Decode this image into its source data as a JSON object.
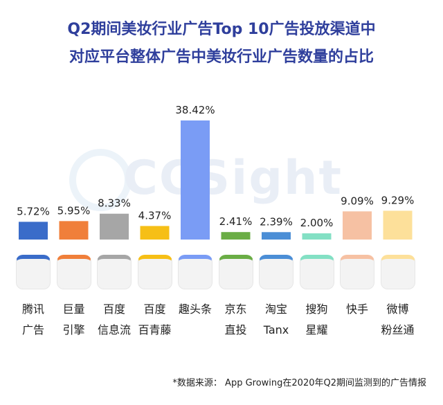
{
  "title_line1": "Q2期间美妆行业广告Top 10广告投放渠道中",
  "title_line2": "对应平台整体广告中美妆行业广告数量的占比",
  "watermark": "CCSight",
  "source": "*数据来源：  App Growing在2020年Q2期间监测到的广告情报",
  "platforms": [
    {
      "line1": "腾讯",
      "line2": "广告",
      "icon": "tencent-ads-icon"
    },
    {
      "line1": "巨量",
      "line2": "引擎",
      "icon": "ocean-engine-icon"
    },
    {
      "line1": "百度",
      "line2": "信息流",
      "icon": "baidu-feed-icon"
    },
    {
      "line1": "百度",
      "line2": "百青藤",
      "icon": "baiqingteng-icon"
    },
    {
      "line1": "趣头条",
      "line2": "",
      "icon": "qutoutiao-icon"
    },
    {
      "line1": "京东",
      "line2": "直投",
      "icon": "jd-direct-icon"
    },
    {
      "line1": "淘宝",
      "line2": "Tanx",
      "icon": "taobao-tanx-icon"
    },
    {
      "line1": "搜狗",
      "line2": "星耀",
      "icon": "sogou-xingyao-icon"
    },
    {
      "line1": "快手",
      "line2": "",
      "icon": "kuaishou-icon"
    },
    {
      "line1": "微博",
      "line2": "粉丝通",
      "icon": "weibo-fensitong-icon"
    }
  ],
  "chart_data": {
    "type": "bar",
    "title": "Q2期间美妆行业广告Top 10广告投放渠道中 对应平台整体广告中美妆行业广告数量的占比",
    "categories": [
      "腾讯广告",
      "巨量引擎",
      "百度信息流",
      "百度百青藤",
      "趣头条",
      "京东直投",
      "淘宝Tanx",
      "搜狗星耀",
      "快手",
      "微博粉丝通"
    ],
    "values": [
      5.72,
      5.95,
      8.33,
      4.37,
      38.42,
      2.41,
      2.39,
      2.0,
      9.09,
      9.29
    ],
    "labels": [
      "5.72%",
      "5.95%",
      "8.33%",
      "4.37%",
      "38.42%",
      "2.41%",
      "2.39%",
      "2.00%",
      "9.09%",
      "9.29%"
    ],
    "colors": [
      "#3a6cc9",
      "#f07f3a",
      "#a6a6a6",
      "#f6bf16",
      "#7a9cf5",
      "#6aad45",
      "#4b8ed6",
      "#83e0c4",
      "#f6c1a3",
      "#fde09a"
    ],
    "ylim": [
      0,
      40
    ]
  }
}
